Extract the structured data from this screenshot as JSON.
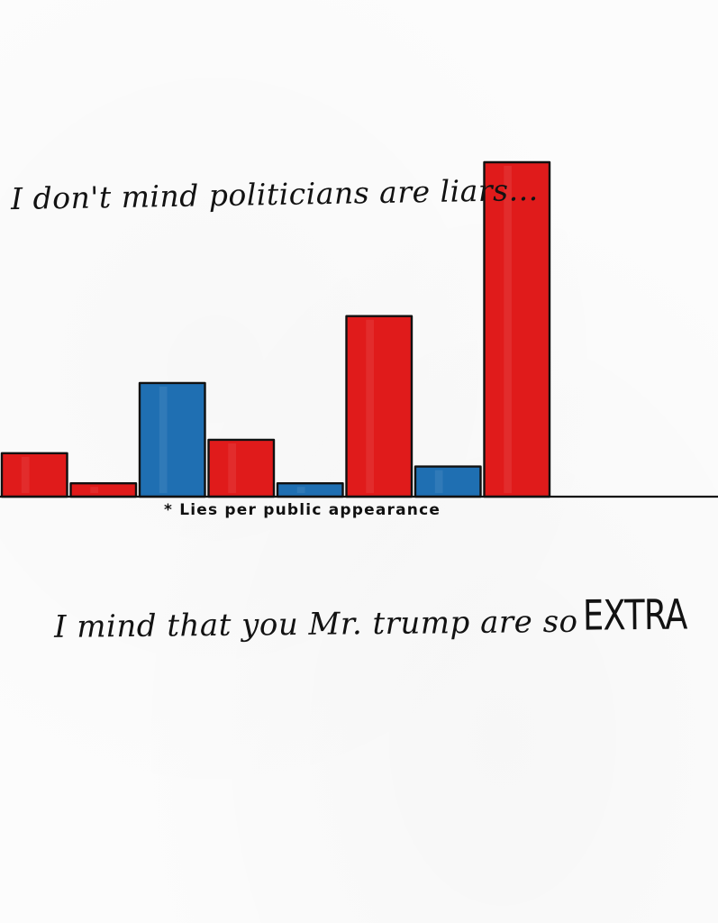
{
  "caption_top": "I don't mind politicians are liars...",
  "caption_bottom_lead": "I mind that you Mr. trump are so",
  "caption_bottom_emphasis": "EXTRA",
  "footnote": "* Lies per public appearance",
  "chart_data": {
    "type": "bar",
    "categories": [
      "",
      "",
      "",
      "",
      "",
      "",
      "",
      ""
    ],
    "values": [
      1.3,
      0.4,
      3.4,
      1.7,
      0.4,
      5.4,
      0.9,
      10.0
    ],
    "colors": [
      "#e01b1b",
      "#e01b1b",
      "#1f6fb2",
      "#e01b1b",
      "#1f6fb2",
      "#e01b1b",
      "#1f6fb2",
      "#e01b1b"
    ],
    "title": "",
    "xlabel": "* Lies per public appearance",
    "ylabel": "",
    "ylim": [
      0,
      10
    ],
    "grid": false
  }
}
